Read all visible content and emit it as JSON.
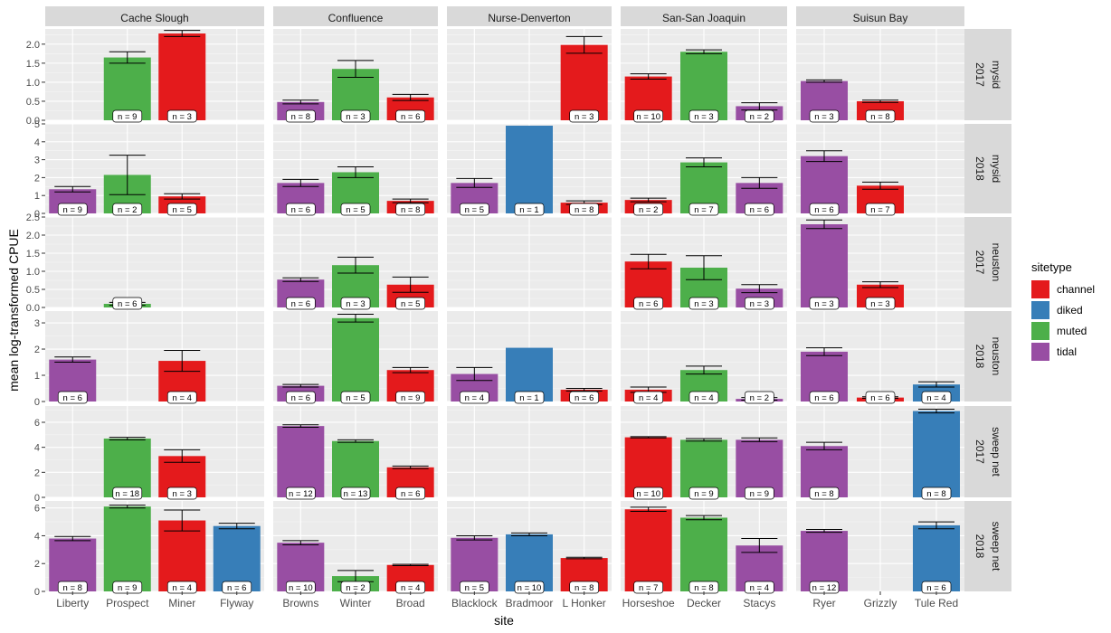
{
  "chart_data": {
    "type": "bar",
    "xlabel": "site",
    "ylabel": "mean log-transformed CPUE",
    "legend": {
      "title": "sitetype",
      "placement": "right",
      "entries": [
        {
          "label": "channel",
          "color": "#E41A1C"
        },
        {
          "label": "diked",
          "color": "#377EB8"
        },
        {
          "label": "muted",
          "color": "#4DAF4A"
        },
        {
          "label": "tidal",
          "color": "#984EA3"
        }
      ]
    },
    "colors": {
      "channel": "#E41A1C",
      "diked": "#377EB8",
      "muted": "#4DAF4A",
      "tidal": "#984EA3"
    },
    "columns": [
      {
        "name": "Cache Slough",
        "sites": [
          "Liberty",
          "Prospect",
          "Miner",
          "Flyway"
        ]
      },
      {
        "name": "Confluence",
        "sites": [
          "Browns",
          "Winter",
          "Broad"
        ]
      },
      {
        "name": "Nurse-Denverton",
        "sites": [
          "Blacklock",
          "Bradmoor",
          "L Honker"
        ]
      },
      {
        "name": "San-San Joaquin",
        "sites": [
          "Horseshoe",
          "Decker",
          "Stacys"
        ]
      },
      {
        "name": "Suisun Bay",
        "sites": [
          "Ryer",
          "Grizzly",
          "Tule Red"
        ]
      }
    ],
    "rows": [
      {
        "year": "2017",
        "taxon": "mysid",
        "ylim": [
          0,
          2.4
        ],
        "ticks": [
          "0.0",
          "0.5",
          "1.0",
          "1.5",
          "2.0"
        ]
      },
      {
        "year": "2018",
        "taxon": "mysid",
        "ylim": [
          0,
          5.0
        ],
        "ticks": [
          "0",
          "1",
          "2",
          "3",
          "4",
          "5"
        ]
      },
      {
        "year": "2017",
        "taxon": "neuston",
        "ylim": [
          0,
          2.5
        ],
        "ticks": [
          "0.0",
          "0.5",
          "1.0",
          "1.5",
          "2.0",
          "2.5"
        ]
      },
      {
        "year": "2018",
        "taxon": "neuston",
        "ylim": [
          0,
          3.45
        ],
        "ticks": [
          "0",
          "1",
          "2",
          "3"
        ]
      },
      {
        "year": "2017",
        "taxon": "sweep net",
        "ylim": [
          0,
          7.3
        ],
        "ticks": [
          "0",
          "2",
          "4",
          "6"
        ]
      },
      {
        "year": "2018",
        "taxon": "sweep net",
        "ylim": [
          0,
          6.5
        ],
        "ticks": [
          "0",
          "2",
          "4",
          "6"
        ]
      }
    ],
    "bars": [
      {
        "row": 0,
        "col": 0,
        "site": "Prospect",
        "type": "muted",
        "value": 1.65,
        "err": [
          1.5,
          1.8
        ],
        "n": "n = 9"
      },
      {
        "row": 0,
        "col": 0,
        "site": "Miner",
        "type": "channel",
        "value": 2.28,
        "err": [
          2.2,
          2.36
        ],
        "n": "n = 3"
      },
      {
        "row": 0,
        "col": 1,
        "site": "Browns",
        "type": "tidal",
        "value": 0.48,
        "err": [
          0.43,
          0.53
        ],
        "n": "n = 8"
      },
      {
        "row": 0,
        "col": 1,
        "site": "Winter",
        "type": "muted",
        "value": 1.35,
        "err": [
          1.13,
          1.57
        ],
        "n": "n = 3"
      },
      {
        "row": 0,
        "col": 1,
        "site": "Broad",
        "type": "channel",
        "value": 0.6,
        "err": [
          0.52,
          0.68
        ],
        "n": "n = 6"
      },
      {
        "row": 0,
        "col": 2,
        "site": "L Honker",
        "type": "channel",
        "value": 1.98,
        "err": [
          1.76,
          2.2
        ],
        "n": "n = 3"
      },
      {
        "row": 0,
        "col": 3,
        "site": "Horseshoe",
        "type": "channel",
        "value": 1.15,
        "err": [
          1.08,
          1.22
        ],
        "n": "n = 10"
      },
      {
        "row": 0,
        "col": 3,
        "site": "Decker",
        "type": "muted",
        "value": 1.8,
        "err": [
          1.75,
          1.85
        ],
        "n": "n = 3"
      },
      {
        "row": 0,
        "col": 3,
        "site": "Stacys",
        "type": "tidal",
        "value": 0.37,
        "err": [
          0.27,
          0.46
        ],
        "n": "n = 2"
      },
      {
        "row": 0,
        "col": 4,
        "site": "Ryer",
        "type": "tidal",
        "value": 1.03,
        "err": [
          1.0,
          1.06
        ],
        "n": "n = 3"
      },
      {
        "row": 0,
        "col": 4,
        "site": "Grizzly",
        "type": "channel",
        "value": 0.5,
        "err": [
          0.47,
          0.53
        ],
        "n": "n = 8"
      },
      {
        "row": 1,
        "col": 0,
        "site": "Liberty",
        "type": "tidal",
        "value": 1.35,
        "err": [
          1.2,
          1.5
        ],
        "n": "n = 9"
      },
      {
        "row": 1,
        "col": 0,
        "site": "Prospect",
        "type": "muted",
        "value": 2.15,
        "err": [
          1.05,
          3.25
        ],
        "n": "n = 2"
      },
      {
        "row": 1,
        "col": 0,
        "site": "Miner",
        "type": "channel",
        "value": 0.95,
        "err": [
          0.8,
          1.1
        ],
        "n": "n = 5"
      },
      {
        "row": 1,
        "col": 1,
        "site": "Browns",
        "type": "tidal",
        "value": 1.7,
        "err": [
          1.5,
          1.9
        ],
        "n": "n = 6"
      },
      {
        "row": 1,
        "col": 1,
        "site": "Winter",
        "type": "muted",
        "value": 2.3,
        "err": [
          2.0,
          2.6
        ],
        "n": "n = 5"
      },
      {
        "row": 1,
        "col": 1,
        "site": "Broad",
        "type": "channel",
        "value": 0.7,
        "err": [
          0.6,
          0.8
        ],
        "n": "n = 8"
      },
      {
        "row": 1,
        "col": 2,
        "site": "Blacklock",
        "type": "tidal",
        "value": 1.7,
        "err": [
          1.45,
          1.95
        ],
        "n": "n = 5"
      },
      {
        "row": 1,
        "col": 2,
        "site": "Bradmoor",
        "type": "diked",
        "value": 4.9,
        "err": null,
        "n": "n = 1"
      },
      {
        "row": 1,
        "col": 2,
        "site": "L Honker",
        "type": "channel",
        "value": 0.6,
        "err": [
          0.5,
          0.7
        ],
        "n": "n = 8"
      },
      {
        "row": 1,
        "col": 3,
        "site": "Horseshoe",
        "type": "channel",
        "value": 0.75,
        "err": [
          0.65,
          0.85
        ],
        "n": "n = 2"
      },
      {
        "row": 1,
        "col": 3,
        "site": "Decker",
        "type": "muted",
        "value": 2.85,
        "err": [
          2.6,
          3.1
        ],
        "n": "n = 7"
      },
      {
        "row": 1,
        "col": 3,
        "site": "Stacys",
        "type": "tidal",
        "value": 1.7,
        "err": [
          1.4,
          2.0
        ],
        "n": "n = 6"
      },
      {
        "row": 1,
        "col": 4,
        "site": "Ryer",
        "type": "tidal",
        "value": 3.2,
        "err": [
          2.9,
          3.5
        ],
        "n": "n = 6"
      },
      {
        "row": 1,
        "col": 4,
        "site": "Grizzly",
        "type": "channel",
        "value": 1.55,
        "err": [
          1.35,
          1.75
        ],
        "n": "n = 7"
      },
      {
        "row": 2,
        "col": 0,
        "site": "Prospect",
        "type": "muted",
        "value": 0.1,
        "err": [
          0.06,
          0.14
        ],
        "n": "n = 6"
      },
      {
        "row": 2,
        "col": 1,
        "site": "Browns",
        "type": "tidal",
        "value": 0.77,
        "err": [
          0.72,
          0.82
        ],
        "n": "n = 6"
      },
      {
        "row": 2,
        "col": 1,
        "site": "Winter",
        "type": "muted",
        "value": 1.17,
        "err": [
          0.95,
          1.39
        ],
        "n": "n = 3"
      },
      {
        "row": 2,
        "col": 1,
        "site": "Broad",
        "type": "channel",
        "value": 0.63,
        "err": [
          0.42,
          0.84
        ],
        "n": "n = 5"
      },
      {
        "row": 2,
        "col": 3,
        "site": "Horseshoe",
        "type": "channel",
        "value": 1.27,
        "err": [
          1.07,
          1.47
        ],
        "n": "n = 6"
      },
      {
        "row": 2,
        "col": 3,
        "site": "Decker",
        "type": "muted",
        "value": 1.1,
        "err": [
          0.77,
          1.43
        ],
        "n": "n = 3"
      },
      {
        "row": 2,
        "col": 3,
        "site": "Stacys",
        "type": "tidal",
        "value": 0.52,
        "err": [
          0.41,
          0.63
        ],
        "n": "n = 3"
      },
      {
        "row": 2,
        "col": 4,
        "site": "Ryer",
        "type": "tidal",
        "value": 2.3,
        "err": [
          2.18,
          2.42
        ],
        "n": "n = 3"
      },
      {
        "row": 2,
        "col": 4,
        "site": "Grizzly",
        "type": "channel",
        "value": 0.63,
        "err": [
          0.55,
          0.71
        ],
        "n": "n = 3"
      },
      {
        "row": 3,
        "col": 0,
        "site": "Liberty",
        "type": "tidal",
        "value": 1.6,
        "err": [
          1.5,
          1.7
        ],
        "n": "n = 6"
      },
      {
        "row": 3,
        "col": 0,
        "site": "Miner",
        "type": "channel",
        "value": 1.55,
        "err": [
          1.15,
          1.95
        ],
        "n": "n = 4"
      },
      {
        "row": 3,
        "col": 1,
        "site": "Browns",
        "type": "tidal",
        "value": 0.6,
        "err": [
          0.55,
          0.65
        ],
        "n": "n = 6"
      },
      {
        "row": 3,
        "col": 1,
        "site": "Winter",
        "type": "muted",
        "value": 3.18,
        "err": [
          3.03,
          3.33
        ],
        "n": "n = 5"
      },
      {
        "row": 3,
        "col": 1,
        "site": "Broad",
        "type": "channel",
        "value": 1.2,
        "err": [
          1.1,
          1.3
        ],
        "n": "n = 9"
      },
      {
        "row": 3,
        "col": 2,
        "site": "Blacklock",
        "type": "tidal",
        "value": 1.05,
        "err": [
          0.8,
          1.3
        ],
        "n": "n = 4"
      },
      {
        "row": 3,
        "col": 2,
        "site": "Bradmoor",
        "type": "diked",
        "value": 2.05,
        "err": null,
        "n": "n = 1"
      },
      {
        "row": 3,
        "col": 2,
        "site": "L Honker",
        "type": "channel",
        "value": 0.45,
        "err": [
          0.4,
          0.5
        ],
        "n": "n = 6"
      },
      {
        "row": 3,
        "col": 3,
        "site": "Horseshoe",
        "type": "channel",
        "value": 0.45,
        "err": [
          0.35,
          0.55
        ],
        "n": "n = 4"
      },
      {
        "row": 3,
        "col": 3,
        "site": "Decker",
        "type": "muted",
        "value": 1.2,
        "err": [
          1.05,
          1.35
        ],
        "n": "n = 4"
      },
      {
        "row": 3,
        "col": 3,
        "site": "Stacys",
        "type": "tidal",
        "value": 0.1,
        "err": [
          0.05,
          0.15
        ],
        "n": "n = 2"
      },
      {
        "row": 3,
        "col": 4,
        "site": "Ryer",
        "type": "tidal",
        "value": 1.9,
        "err": [
          1.75,
          2.05
        ],
        "n": "n = 6"
      },
      {
        "row": 3,
        "col": 4,
        "site": "Grizzly",
        "type": "channel",
        "value": 0.15,
        "err": [
          0.12,
          0.18
        ],
        "n": "n = 6"
      },
      {
        "row": 3,
        "col": 4,
        "site": "Tule Red",
        "type": "diked",
        "value": 0.65,
        "err": [
          0.55,
          0.75
        ],
        "n": "n = 4"
      },
      {
        "row": 4,
        "col": 0,
        "site": "Prospect",
        "type": "muted",
        "value": 4.7,
        "err": [
          4.6,
          4.8
        ],
        "n": "n = 18"
      },
      {
        "row": 4,
        "col": 0,
        "site": "Miner",
        "type": "channel",
        "value": 3.3,
        "err": [
          2.8,
          3.8
        ],
        "n": "n = 3"
      },
      {
        "row": 4,
        "col": 1,
        "site": "Browns",
        "type": "tidal",
        "value": 5.7,
        "err": [
          5.6,
          5.8
        ],
        "n": "n = 12"
      },
      {
        "row": 4,
        "col": 1,
        "site": "Winter",
        "type": "muted",
        "value": 4.5,
        "err": [
          4.4,
          4.6
        ],
        "n": "n = 13"
      },
      {
        "row": 4,
        "col": 1,
        "site": "Broad",
        "type": "channel",
        "value": 2.4,
        "err": [
          2.3,
          2.5
        ],
        "n": "n = 6"
      },
      {
        "row": 4,
        "col": 3,
        "site": "Horseshoe",
        "type": "channel",
        "value": 4.8,
        "err": [
          4.75,
          4.85
        ],
        "n": "n = 10"
      },
      {
        "row": 4,
        "col": 3,
        "site": "Decker",
        "type": "muted",
        "value": 4.6,
        "err": [
          4.5,
          4.7
        ],
        "n": "n = 9"
      },
      {
        "row": 4,
        "col": 3,
        "site": "Stacys",
        "type": "tidal",
        "value": 4.6,
        "err": [
          4.45,
          4.75
        ],
        "n": "n = 9"
      },
      {
        "row": 4,
        "col": 4,
        "site": "Ryer",
        "type": "tidal",
        "value": 4.1,
        "err": [
          3.8,
          4.4
        ],
        "n": "n = 8"
      },
      {
        "row": 4,
        "col": 4,
        "site": "Tule Red",
        "type": "diked",
        "value": 6.9,
        "err": [
          6.75,
          7.05
        ],
        "n": "n = 8"
      },
      {
        "row": 5,
        "col": 0,
        "site": "Liberty",
        "type": "tidal",
        "value": 3.8,
        "err": [
          3.65,
          3.95
        ],
        "n": "n = 8"
      },
      {
        "row": 5,
        "col": 0,
        "site": "Prospect",
        "type": "muted",
        "value": 6.1,
        "err": [
          6.0,
          6.2
        ],
        "n": "n = 9"
      },
      {
        "row": 5,
        "col": 0,
        "site": "Miner",
        "type": "channel",
        "value": 5.1,
        "err": [
          4.35,
          5.85
        ],
        "n": "n = 4"
      },
      {
        "row": 5,
        "col": 0,
        "site": "Flyway",
        "type": "diked",
        "value": 4.7,
        "err": [
          4.5,
          4.9
        ],
        "n": "n = 6"
      },
      {
        "row": 5,
        "col": 1,
        "site": "Browns",
        "type": "tidal",
        "value": 3.5,
        "err": [
          3.35,
          3.65
        ],
        "n": "n = 10"
      },
      {
        "row": 5,
        "col": 1,
        "site": "Winter",
        "type": "muted",
        "value": 1.1,
        "err": [
          0.7,
          1.5
        ],
        "n": "n = 2"
      },
      {
        "row": 5,
        "col": 1,
        "site": "Broad",
        "type": "channel",
        "value": 1.9,
        "err": [
          1.85,
          1.95
        ],
        "n": "n = 4"
      },
      {
        "row": 5,
        "col": 2,
        "site": "Blacklock",
        "type": "tidal",
        "value": 3.85,
        "err": [
          3.7,
          4.0
        ],
        "n": "n = 5"
      },
      {
        "row": 5,
        "col": 2,
        "site": "Bradmoor",
        "type": "diked",
        "value": 4.1,
        "err": [
          4.0,
          4.2
        ],
        "n": "n = 10"
      },
      {
        "row": 5,
        "col": 2,
        "site": "L Honker",
        "type": "channel",
        "value": 2.4,
        "err": [
          2.35,
          2.45
        ],
        "n": "n = 8"
      },
      {
        "row": 5,
        "col": 3,
        "site": "Horseshoe",
        "type": "channel",
        "value": 5.9,
        "err": [
          5.75,
          6.05
        ],
        "n": "n = 7"
      },
      {
        "row": 5,
        "col": 3,
        "site": "Decker",
        "type": "muted",
        "value": 5.3,
        "err": [
          5.15,
          5.45
        ],
        "n": "n = 8"
      },
      {
        "row": 5,
        "col": 3,
        "site": "Stacys",
        "type": "tidal",
        "value": 3.3,
        "err": [
          2.8,
          3.8
        ],
        "n": "n = 4"
      },
      {
        "row": 5,
        "col": 4,
        "site": "Ryer",
        "type": "tidal",
        "value": 4.35,
        "err": [
          4.25,
          4.45
        ],
        "n": "n = 12"
      },
      {
        "row": 5,
        "col": 4,
        "site": "Tule Red",
        "type": "diked",
        "value": 4.75,
        "err": [
          4.5,
          5.0
        ],
        "n": "n = 6"
      }
    ]
  }
}
